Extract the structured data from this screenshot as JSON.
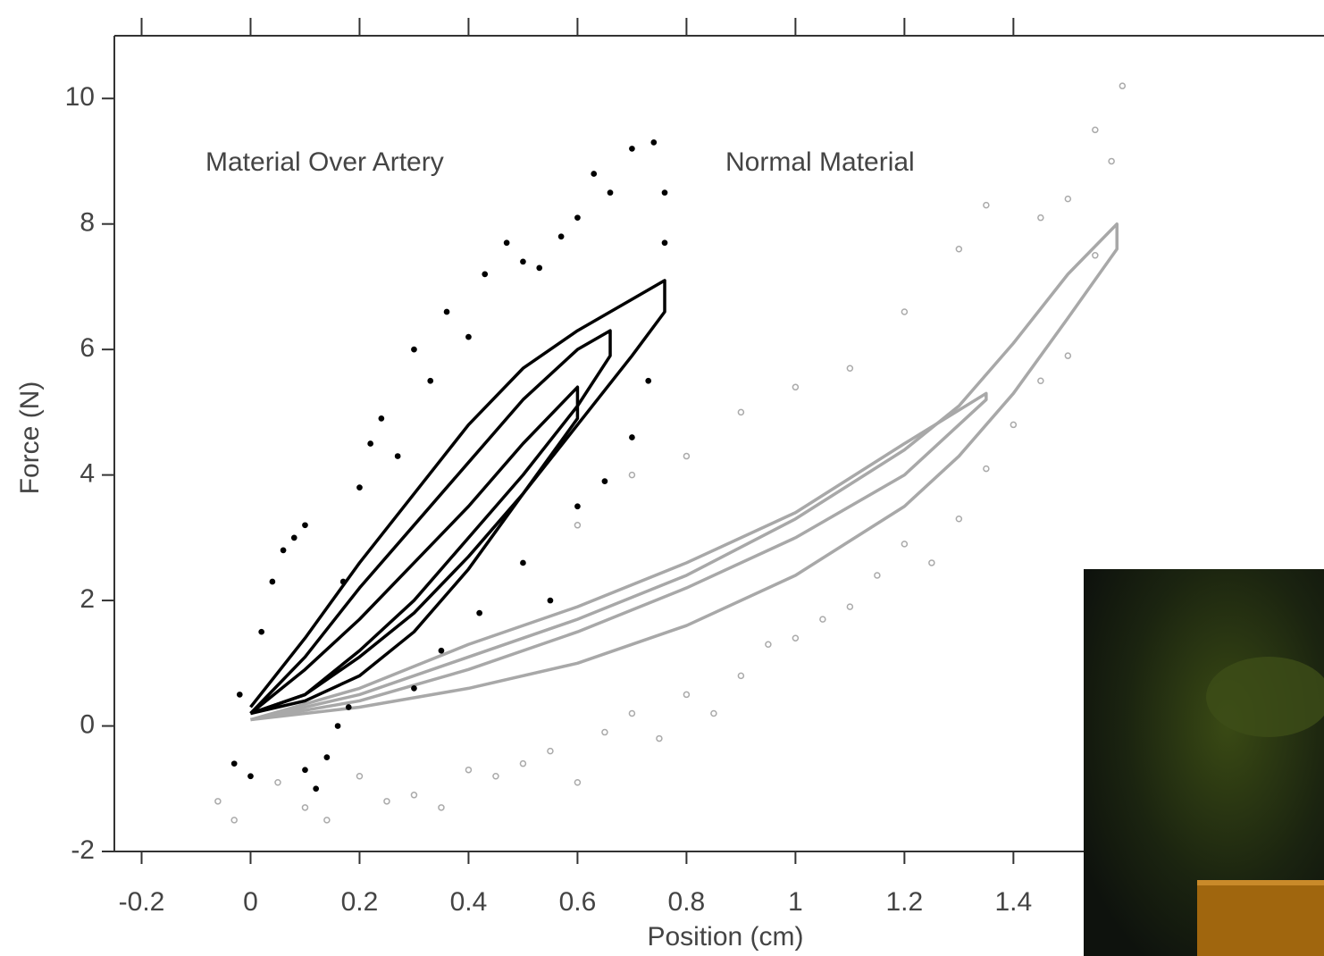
{
  "chart_data": {
    "type": "line",
    "xlabel": "Position (cm)",
    "ylabel": "Force (N)",
    "xlim": [
      -0.25,
      1.97
    ],
    "ylim": [
      -2,
      11
    ],
    "xticks": [
      -0.2,
      0,
      0.2,
      0.4,
      0.6,
      0.8,
      1,
      1.2,
      1.4
    ],
    "yticks": [
      -2,
      0,
      2,
      4,
      6,
      8,
      10
    ],
    "annotations": [
      {
        "text": "Material Over Artery",
        "color": "#333333"
      },
      {
        "text": "Normal Material",
        "color": "#aaaaaa"
      }
    ],
    "series": [
      {
        "type": "scatter",
        "color": "#aaaaaa",
        "x": [
          -0.06,
          -0.03,
          0.05,
          0.1,
          0.14,
          0.2,
          0.25,
          0.3,
          0.35,
          0.4,
          0.45,
          0.5,
          0.55,
          0.6,
          0.65,
          0.7,
          0.75,
          0.8,
          0.85,
          0.9,
          0.95,
          1.0,
          1.05,
          1.1,
          1.15,
          1.2,
          1.25,
          1.3,
          1.35,
          1.4,
          1.45,
          1.5,
          1.55,
          1.58,
          1.55,
          1.6,
          0.6,
          0.7,
          0.8,
          0.9,
          1.0,
          1.1,
          1.2,
          1.3,
          1.35,
          1.45,
          1.5
        ],
        "y": [
          -1.2,
          -1.5,
          -0.9,
          -1.3,
          -1.5,
          -0.8,
          -1.2,
          -1.1,
          -1.3,
          -0.7,
          -0.8,
          -0.6,
          -0.4,
          -0.9,
          -0.1,
          0.2,
          -0.2,
          0.5,
          0.2,
          0.8,
          1.3,
          1.4,
          1.7,
          1.9,
          2.4,
          2.9,
          2.6,
          3.3,
          4.1,
          4.8,
          5.5,
          5.9,
          7.5,
          9.0,
          9.5,
          10.2,
          3.2,
          4.0,
          4.3,
          5.0,
          5.4,
          5.7,
          6.6,
          7.6,
          8.3,
          8.1,
          8.4
        ]
      },
      {
        "type": "line",
        "color": "#a8a8a8",
        "x": [
          0,
          0.2,
          0.4,
          0.6,
          0.8,
          1.0,
          1.2,
          1.3,
          1.4,
          1.5,
          1.59,
          1.59,
          1.5,
          1.4,
          1.3,
          1.2,
          1.0,
          0.8,
          0.6,
          0.4,
          0.2,
          0
        ],
        "y": [
          0.1,
          0.5,
          1.1,
          1.7,
          2.4,
          3.3,
          4.4,
          5.1,
          6.1,
          7.2,
          8.0,
          7.6,
          6.5,
          5.3,
          4.3,
          3.5,
          2.4,
          1.6,
          1.0,
          0.6,
          0.3,
          0.1
        ]
      },
      {
        "type": "line",
        "color": "#a8a8a8",
        "x": [
          0,
          0.2,
          0.4,
          0.6,
          0.8,
          1.0,
          1.2,
          1.35,
          1.35,
          1.2,
          1.0,
          0.8,
          0.6,
          0.4,
          0.2,
          0
        ],
        "y": [
          0.1,
          0.6,
          1.3,
          1.9,
          2.6,
          3.4,
          4.5,
          5.3,
          5.2,
          4.0,
          3.0,
          2.2,
          1.5,
          0.9,
          0.4,
          0.1
        ]
      },
      {
        "type": "scatter",
        "color": "#000000",
        "x": [
          -0.03,
          -0.02,
          0,
          0.02,
          0.04,
          0.06,
          0.08,
          0.1,
          0.1,
          0.12,
          0.14,
          0.16,
          0.18,
          0.17,
          0.2,
          0.22,
          0.24,
          0.27,
          0.3,
          0.33,
          0.36,
          0.4,
          0.43,
          0.47,
          0.5,
          0.53,
          0.57,
          0.6,
          0.63,
          0.66,
          0.7,
          0.74,
          0.76,
          0.76,
          0.3,
          0.35,
          0.42,
          0.5,
          0.55,
          0.6,
          0.65,
          0.7,
          0.73
        ],
        "y": [
          -0.6,
          0.5,
          -0.8,
          1.5,
          2.3,
          2.8,
          3.0,
          3.2,
          -0.7,
          -1.0,
          -0.5,
          0.0,
          0.3,
          2.3,
          3.8,
          4.5,
          4.9,
          4.3,
          6.0,
          5.5,
          6.6,
          6.2,
          7.2,
          7.7,
          7.4,
          7.3,
          7.8,
          8.1,
          8.8,
          8.5,
          9.2,
          9.3,
          8.5,
          7.7,
          0.6,
          1.2,
          1.8,
          2.6,
          2.0,
          3.5,
          3.9,
          4.6,
          5.5
        ]
      },
      {
        "type": "line",
        "color": "#000000",
        "x": [
          0,
          0.1,
          0.2,
          0.3,
          0.4,
          0.5,
          0.6,
          0.7,
          0.76,
          0.76,
          0.7,
          0.6,
          0.5,
          0.4,
          0.3,
          0.2,
          0.1,
          0
        ],
        "y": [
          0.3,
          1.4,
          2.6,
          3.7,
          4.8,
          5.7,
          6.3,
          6.8,
          7.1,
          6.6,
          5.9,
          4.8,
          3.7,
          2.7,
          1.8,
          1.1,
          0.5,
          0.2
        ]
      },
      {
        "type": "line",
        "color": "#000000",
        "x": [
          0,
          0.1,
          0.2,
          0.3,
          0.4,
          0.5,
          0.6,
          0.66,
          0.66,
          0.6,
          0.5,
          0.4,
          0.3,
          0.2,
          0.1,
          0
        ],
        "y": [
          0.2,
          1.1,
          2.2,
          3.2,
          4.2,
          5.2,
          6.0,
          6.3,
          5.9,
          5.1,
          4.0,
          3.0,
          2.0,
          1.2,
          0.5,
          0.2
        ]
      },
      {
        "type": "line",
        "color": "#000000",
        "x": [
          0,
          0.1,
          0.2,
          0.3,
          0.4,
          0.5,
          0.6,
          0.6,
          0.5,
          0.4,
          0.3,
          0.2,
          0.1,
          0
        ],
        "y": [
          0.2,
          0.9,
          1.7,
          2.6,
          3.5,
          4.5,
          5.4,
          4.9,
          3.7,
          2.5,
          1.5,
          0.8,
          0.4,
          0.2
        ]
      }
    ]
  }
}
